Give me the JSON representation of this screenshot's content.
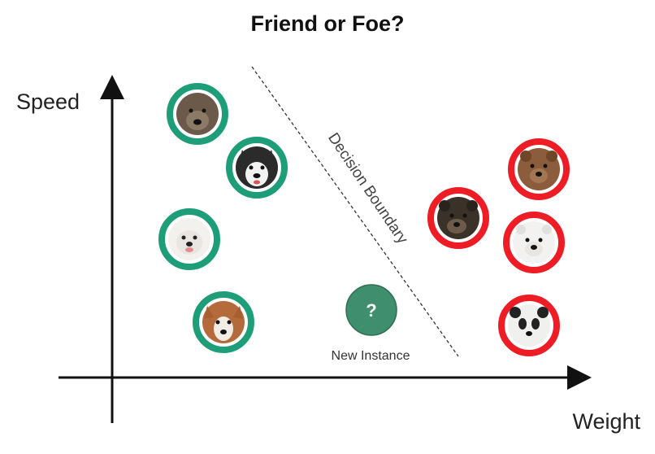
{
  "title": "Friend or Foe?",
  "ylabel": "Speed",
  "xlabel": "Weight",
  "boundary_label": "Decision Boundary",
  "new_instance": {
    "label": "New Instance",
    "symbol": "?"
  },
  "colors": {
    "friend": "#1e9e78",
    "foe": "#ee1c25",
    "new_instance_fill": "#3f8f6e"
  },
  "friends": [
    {
      "name": "dog-dark",
      "fur": "#6b5a4a",
      "face": "#8a7a66"
    },
    {
      "name": "husky",
      "fur": "#2b2b2b",
      "face": "#f2f2f2"
    },
    {
      "name": "samoyed",
      "fur": "#f3f1ee",
      "face": "#e9e6e2"
    },
    {
      "name": "corgi",
      "fur": "#b46a3a",
      "face": "#f3ece4"
    }
  ],
  "foes": [
    {
      "name": "brown-bear",
      "fur": "#8c5d3c",
      "face": "#a37652"
    },
    {
      "name": "black-bear",
      "fur": "#3a3128",
      "face": "#6d5a48"
    },
    {
      "name": "polar-bear",
      "fur": "#f2f2f0",
      "face": "#e8e6e2"
    },
    {
      "name": "panda",
      "fur": "#f0f0ee",
      "face": "#222222"
    }
  ]
}
